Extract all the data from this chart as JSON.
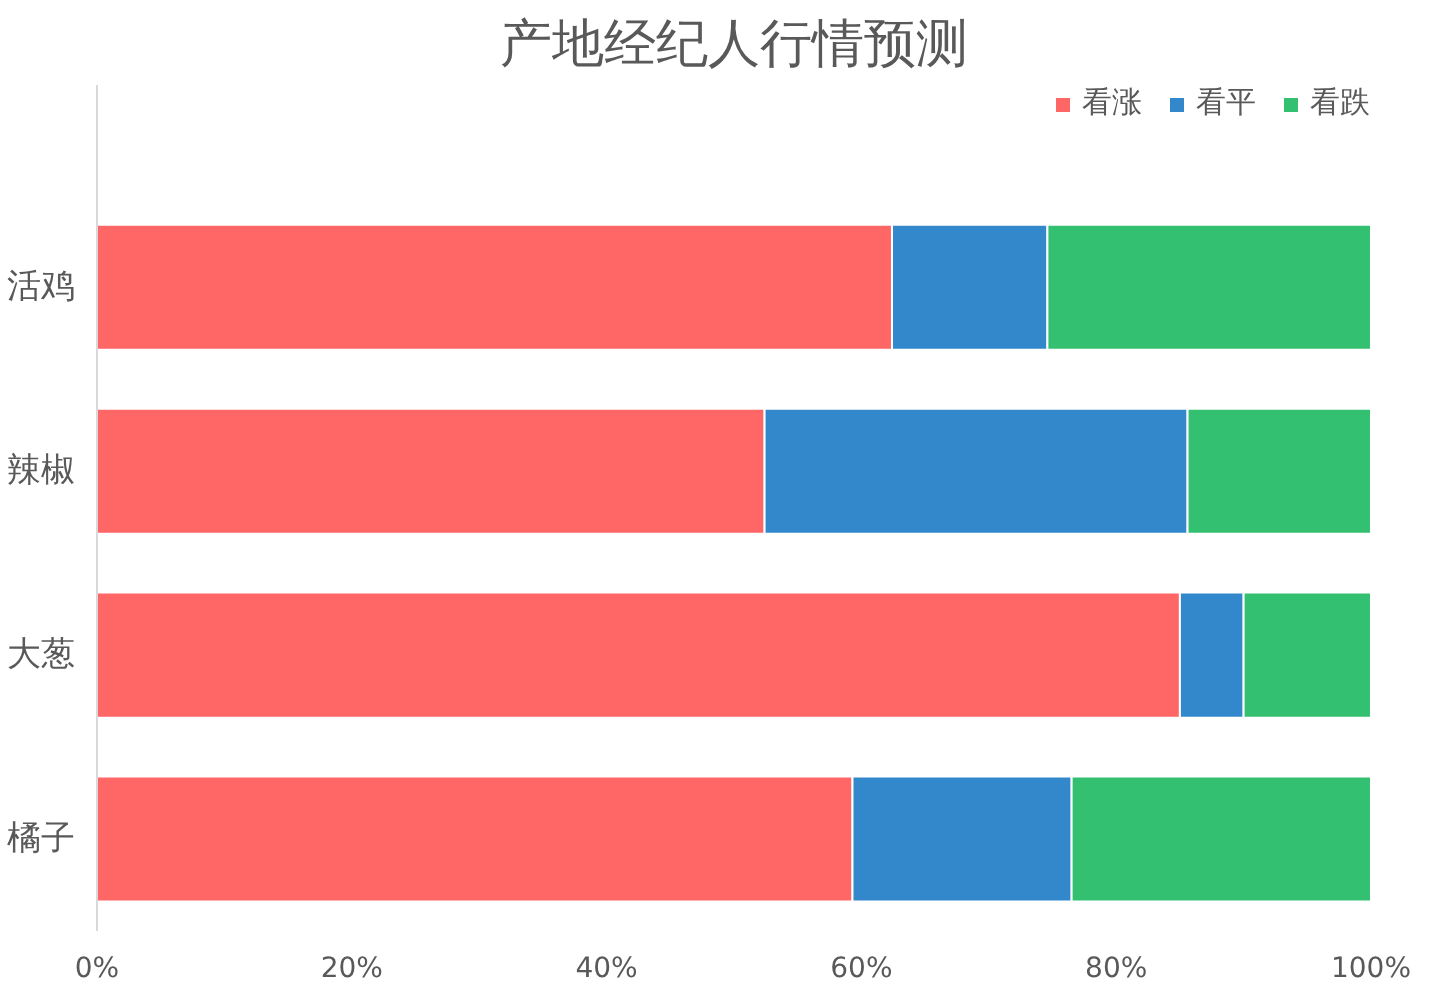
{
  "chart_data": {
    "type": "bar",
    "orientation": "horizontal",
    "stacked": true,
    "title": "产地经纪人行情预测",
    "categories": [
      "活鸡",
      "辣椒",
      "大葱",
      "橘子"
    ],
    "series": [
      {
        "name": "看涨",
        "color": "#ff6666",
        "values": [
          62.4,
          52.4,
          85,
          59.3
        ]
      },
      {
        "name": "看平",
        "color": "#3388cc",
        "values": [
          12.2,
          33.2,
          5,
          17.2
        ]
      },
      {
        "name": "看跌",
        "color": "#33c070",
        "values": [
          25.4,
          14.4,
          10,
          23.5
        ]
      }
    ],
    "xlim": [
      0,
      100
    ],
    "xticks": [
      {
        "value": 0,
        "label": "0%"
      },
      {
        "value": 20,
        "label": "20%"
      },
      {
        "value": 40,
        "label": "40%"
      },
      {
        "value": 60,
        "label": "60%"
      },
      {
        "value": 80,
        "label": "80%"
      },
      {
        "value": 100,
        "label": "100%"
      }
    ],
    "grid": false,
    "legend": "top right"
  }
}
